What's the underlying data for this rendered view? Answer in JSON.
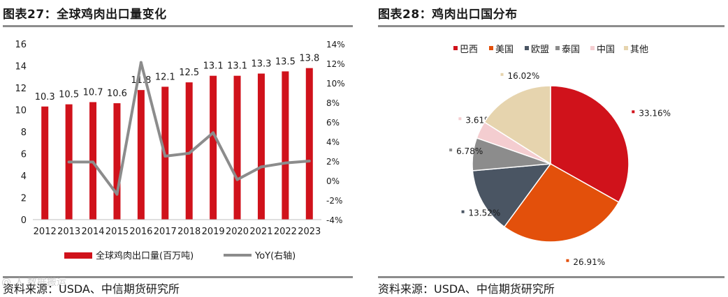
{
  "left": {
    "title": "图表27：全球鸡肉出口量变化",
    "source": "资料来源：USDA、中信期货研究所",
    "watermark": "@ 人 数据搬运",
    "chart_data": {
      "type": "bar+line",
      "categories": [
        "2012",
        "2013",
        "2014",
        "2015",
        "2016",
        "2017",
        "2018",
        "2019",
        "2020",
        "2021",
        "2022",
        "2023"
      ],
      "series": [
        {
          "name": "全球鸡肉出口量(百万吨)",
          "type": "bar",
          "axis": "left",
          "color": "#d0121b",
          "values": [
            10.3,
            10.5,
            10.7,
            10.6,
            11.8,
            12.1,
            12.5,
            13.1,
            13.1,
            13.3,
            13.5,
            13.8
          ],
          "labels": [
            "10.3",
            "10.5",
            "10.7",
            "10.6",
            "11.8",
            "12.1",
            "12.5",
            "13.1",
            "13.1",
            "13.3",
            "13.5",
            "13.8"
          ]
        },
        {
          "name": "YoY(右轴)",
          "type": "line",
          "axis": "right",
          "color": "#8c8c8c",
          "values": [
            null,
            1.9,
            1.9,
            -1.4,
            12.1,
            2.5,
            2.8,
            4.9,
            0.1,
            1.4,
            1.8,
            2.0
          ]
        }
      ],
      "ylim_left": [
        0,
        16
      ],
      "yticks_left": [
        "0",
        "2",
        "4",
        "6",
        "8",
        "10",
        "12",
        "14",
        "16"
      ],
      "ylim_right": [
        -4,
        14
      ],
      "yticks_right": [
        "-4%",
        "-2%",
        "0%",
        "2%",
        "4%",
        "6%",
        "8%",
        "10%",
        "12%",
        "14%"
      ],
      "legend_position": "bottom"
    }
  },
  "right": {
    "title": "图表28：鸡肉出口国分布",
    "source": "资料来源：USDA、中信期货研究所",
    "chart_data": {
      "type": "pie",
      "legend_position": "top",
      "slices": [
        {
          "name": "巴西",
          "value": 33.16,
          "label": "33.16%",
          "color": "#d0121b"
        },
        {
          "name": "美国",
          "value": 26.91,
          "label": "26.91%",
          "color": "#e3500b"
        },
        {
          "name": "欧盟",
          "value": 13.52,
          "label": "13.52%",
          "color": "#4a5563"
        },
        {
          "name": "泰国",
          "value": 6.78,
          "label": "6.78%",
          "color": "#8c8c8c"
        },
        {
          "name": "中国",
          "value": 3.61,
          "label": "3.61%",
          "color": "#f4cdd0"
        },
        {
          "name": "其他",
          "value": 16.02,
          "label": "16.02%",
          "color": "#e6d4ae"
        }
      ]
    }
  }
}
